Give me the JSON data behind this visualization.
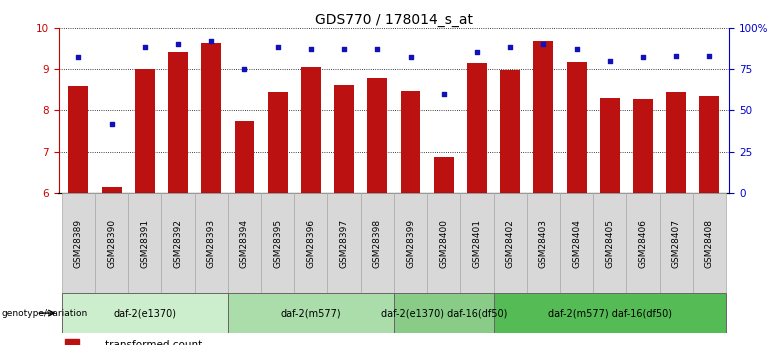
{
  "title": "GDS770 / 178014_s_at",
  "categories": [
    "GSM28389",
    "GSM28390",
    "GSM28391",
    "GSM28392",
    "GSM28393",
    "GSM28394",
    "GSM28395",
    "GSM28396",
    "GSM28397",
    "GSM28398",
    "GSM28399",
    "GSM28400",
    "GSM28401",
    "GSM28402",
    "GSM28403",
    "GSM28404",
    "GSM28405",
    "GSM28406",
    "GSM28407",
    "GSM28408"
  ],
  "bar_values": [
    8.6,
    6.15,
    9.0,
    9.4,
    9.62,
    7.75,
    8.45,
    9.05,
    8.62,
    8.78,
    8.47,
    6.88,
    9.15,
    8.98,
    9.68,
    9.18,
    8.3,
    8.28,
    8.45,
    8.35
  ],
  "dot_values": [
    82,
    42,
    88,
    90,
    92,
    75,
    88,
    87,
    87,
    87,
    82,
    60,
    85,
    88,
    90,
    87,
    80,
    82,
    83,
    83
  ],
  "ylim": [
    6,
    10
  ],
  "y2lim": [
    0,
    100
  ],
  "yticks": [
    6,
    7,
    8,
    9,
    10
  ],
  "y2ticks": [
    0,
    25,
    50,
    75,
    100
  ],
  "y2ticklabels": [
    "0",
    "25",
    "50",
    "75",
    "100%"
  ],
  "bar_color": "#bb1111",
  "dot_color": "#1111bb",
  "grid_color": "#000000",
  "bg_color": "#ffffff",
  "plot_bg": "#ffffff",
  "group_labels": [
    "daf-2(e1370)",
    "daf-2(m577)",
    "daf-2(e1370) daf-16(df50)",
    "daf-2(m577) daf-16(df50)"
  ],
  "group_ranges": [
    [
      0,
      4
    ],
    [
      5,
      9
    ],
    [
      10,
      12
    ],
    [
      13,
      19
    ]
  ],
  "group_colors": [
    "#cceecc",
    "#aaddaa",
    "#88cc88",
    "#55bb55"
  ],
  "xticklabel_color": "#000000",
  "ylabel_color": "#cc0000",
  "y2label_color": "#0000cc",
  "bar_width": 0.6,
  "title_fontsize": 10,
  "tick_fontsize": 6.5,
  "legend_fontsize": 7.5,
  "genotype_label": "genotype/variation"
}
